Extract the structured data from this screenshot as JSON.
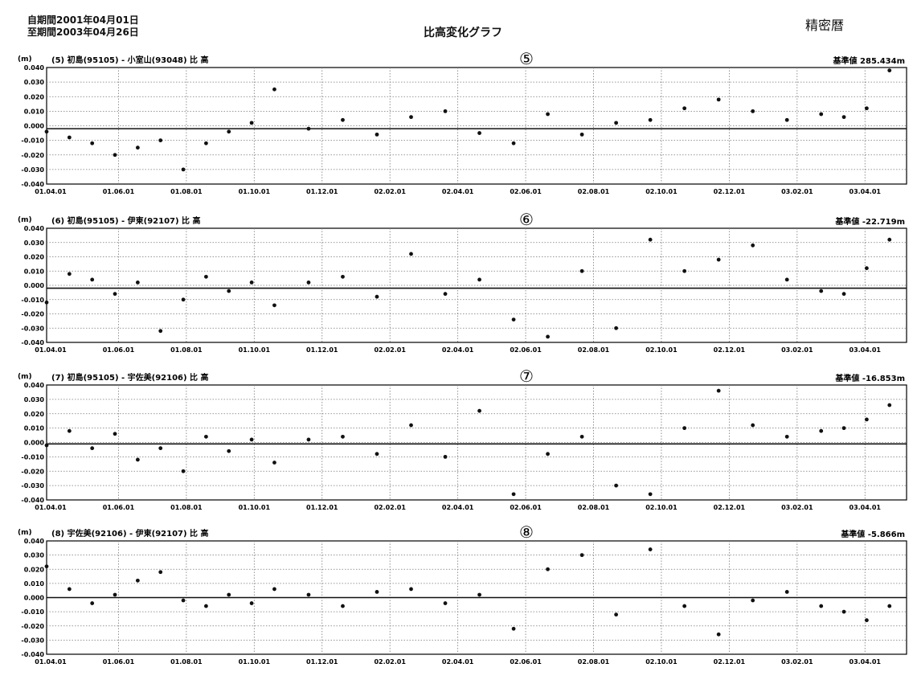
{
  "header": {
    "period_from": "自期間2001年04月01日",
    "period_to": "至期間2003年04月26日",
    "title": "比高変化グラフ",
    "precision_label": "精密暦"
  },
  "chart_data": [
    {
      "type": "scatter",
      "badge": "⑤",
      "title": "(5) 初島(95105) - 小室山(93048) 比 高",
      "unit_label": "(m)",
      "reference": "基準値 285.434m",
      "ylim": [
        -0.04,
        0.04
      ],
      "yticks": [
        "0.040",
        "0.030",
        "0.020",
        "0.010",
        "0.000",
        "-0.010",
        "-0.020",
        "-0.030",
        "-0.040"
      ],
      "xticks": [
        "01.04.01",
        "01.06.01",
        "01.08.01",
        "01.10.01",
        "01.12.01",
        "02.02.01",
        "02.04.01",
        "02.06.01",
        "02.08.01",
        "02.10.01",
        "02.12.01",
        "03.02.01",
        "03.04.01"
      ],
      "trend": [
        -0.002,
        -0.002
      ],
      "grid": true,
      "x": [
        0,
        20,
        40,
        60,
        80,
        100,
        120,
        140,
        160,
        180,
        200,
        230,
        260,
        290,
        320,
        350,
        380,
        410,
        440,
        470,
        500,
        530,
        560,
        590,
        620,
        650,
        680,
        700,
        720,
        740
      ],
      "y": [
        -0.004,
        -0.008,
        -0.012,
        -0.02,
        -0.015,
        -0.01,
        -0.03,
        -0.012,
        -0.004,
        0.002,
        0.025,
        -0.002,
        0.004,
        -0.006,
        0.006,
        0.01,
        -0.005,
        -0.012,
        0.008,
        -0.006,
        0.002,
        0.004,
        0.012,
        0.018,
        0.01,
        0.004,
        0.008,
        0.006,
        0.012,
        0.038
      ]
    },
    {
      "type": "scatter",
      "badge": "⑥",
      "title": "(6) 初島(95105) - 伊東(92107) 比 高",
      "unit_label": "(m)",
      "reference": "基準値 -22.719m",
      "ylim": [
        -0.04,
        0.04
      ],
      "yticks": [
        "0.040",
        "0.030",
        "0.020",
        "0.010",
        "0.000",
        "-0.010",
        "-0.020",
        "-0.030",
        "-0.040"
      ],
      "xticks": [
        "01.04.01",
        "01.06.01",
        "01.08.01",
        "01.10.01",
        "01.12.01",
        "02.02.01",
        "02.04.01",
        "02.06.01",
        "02.08.01",
        "02.10.01",
        "02.12.01",
        "03.02.01",
        "03.04.01"
      ],
      "trend": [
        -0.002,
        -0.002
      ],
      "grid": true,
      "x": [
        0,
        20,
        40,
        60,
        80,
        100,
        120,
        140,
        160,
        180,
        200,
        230,
        260,
        290,
        320,
        350,
        380,
        410,
        440,
        470,
        500,
        530,
        560,
        590,
        620,
        650,
        680,
        700,
        720,
        740
      ],
      "y": [
        -0.012,
        0.008,
        0.004,
        -0.006,
        0.002,
        -0.032,
        -0.01,
        0.006,
        -0.004,
        0.002,
        -0.014,
        0.002,
        0.006,
        -0.008,
        0.022,
        -0.006,
        0.004,
        -0.024,
        -0.036,
        0.01,
        -0.03,
        0.032,
        0.01,
        0.018,
        0.028,
        0.004,
        -0.004,
        -0.006,
        0.012,
        0.032
      ]
    },
    {
      "type": "scatter",
      "badge": "⑦",
      "title": "(7) 初島(95105) - 宇佐美(92106) 比 高",
      "unit_label": "(m)",
      "reference": "基準値 -16.853m",
      "ylim": [
        -0.04,
        0.04
      ],
      "yticks": [
        "0.040",
        "0.030",
        "0.020",
        "0.010",
        "0.000",
        "-0.010",
        "-0.020",
        "-0.030",
        "-0.040"
      ],
      "xticks": [
        "01.04.01",
        "01.06.01",
        "01.08.01",
        "01.10.01",
        "01.12.01",
        "02.02.01",
        "02.04.01",
        "02.06.01",
        "02.08.01",
        "02.10.01",
        "02.12.01",
        "03.02.01",
        "03.04.01"
      ],
      "trend": [
        -0.001,
        -0.001
      ],
      "grid": true,
      "x": [
        0,
        20,
        40,
        60,
        80,
        100,
        120,
        140,
        160,
        180,
        200,
        230,
        260,
        290,
        320,
        350,
        380,
        410,
        440,
        470,
        500,
        530,
        560,
        590,
        620,
        650,
        680,
        700,
        720,
        740
      ],
      "y": [
        -0.002,
        0.008,
        -0.004,
        0.006,
        -0.012,
        -0.004,
        -0.02,
        0.004,
        -0.006,
        0.002,
        -0.014,
        0.002,
        0.004,
        -0.008,
        0.012,
        -0.01,
        0.022,
        -0.036,
        -0.008,
        0.004,
        -0.03,
        -0.036,
        0.01,
        0.036,
        0.012,
        0.004,
        0.008,
        0.01,
        0.016,
        0.026
      ]
    },
    {
      "type": "scatter",
      "badge": "⑧",
      "title": "(8) 宇佐美(92106) - 伊東(92107) 比 高",
      "unit_label": "(m)",
      "reference": "基準値 -5.866m",
      "ylim": [
        -0.04,
        0.04
      ],
      "yticks": [
        "0.040",
        "0.030",
        "0.020",
        "0.010",
        "0.000",
        "-0.010",
        "-0.020",
        "-0.030",
        "-0.040"
      ],
      "xticks": [
        "01.04.01",
        "01.06.01",
        "01.08.01",
        "01.10.01",
        "01.12.01",
        "02.02.01",
        "02.04.01",
        "02.06.01",
        "02.08.01",
        "02.10.01",
        "02.12.01",
        "03.02.01",
        "03.04.01"
      ],
      "trend": [
        0.0,
        0.0
      ],
      "grid": true,
      "x": [
        0,
        20,
        40,
        60,
        80,
        100,
        120,
        140,
        160,
        180,
        200,
        230,
        260,
        290,
        320,
        350,
        380,
        410,
        440,
        470,
        500,
        530,
        560,
        590,
        620,
        650,
        680,
        700,
        720,
        740
      ],
      "y": [
        0.022,
        0.006,
        -0.004,
        0.002,
        0.012,
        0.018,
        -0.002,
        -0.006,
        0.002,
        -0.004,
        0.006,
        0.002,
        -0.006,
        0.004,
        0.006,
        -0.004,
        0.002,
        -0.022,
        0.02,
        0.03,
        -0.012,
        0.034,
        -0.006,
        -0.026,
        -0.002,
        0.004,
        -0.006,
        -0.01,
        -0.016,
        -0.006
      ]
    }
  ]
}
